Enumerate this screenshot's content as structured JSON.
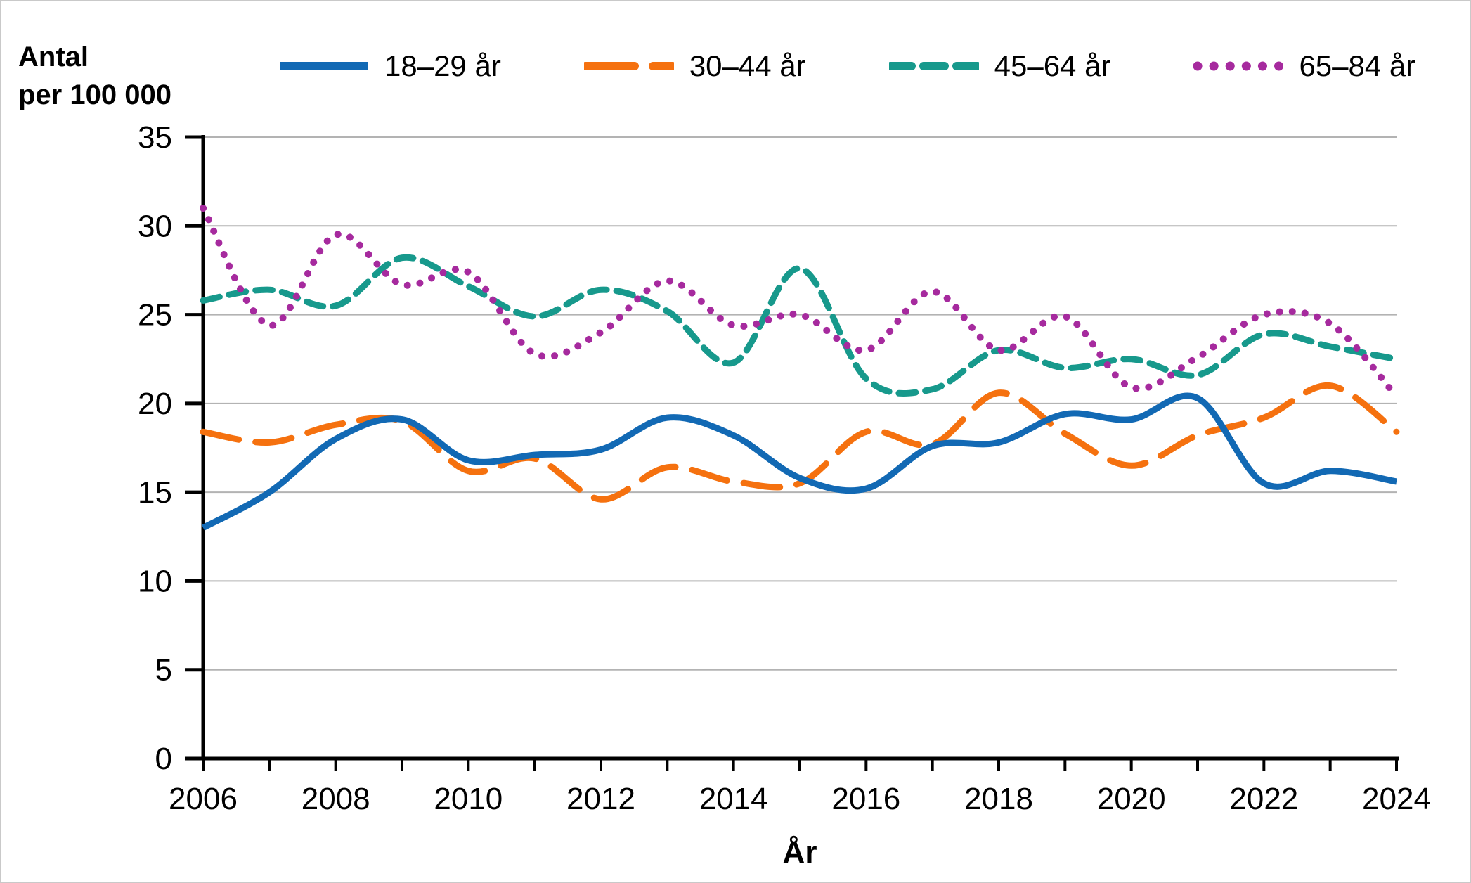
{
  "unit_label": {
    "line1": "Antal",
    "line2": "per 100 000"
  },
  "x_axis_title": "År",
  "chart_data": {
    "type": "line",
    "title": "",
    "ylabel": "Antal per 100 000",
    "xlabel": "År",
    "grid": true,
    "legend_position": "top",
    "ylim": [
      0,
      35
    ],
    "ytick_step": 5,
    "ytick_labels": [
      "0",
      "5",
      "10",
      "15",
      "20",
      "25",
      "30",
      "35"
    ],
    "x": [
      2006,
      2007,
      2008,
      2009,
      2010,
      2011,
      2012,
      2013,
      2014,
      2015,
      2016,
      2017,
      2018,
      2019,
      2020,
      2021,
      2022,
      2023,
      2024
    ],
    "xtick_labels": [
      "2006",
      "2008",
      "2010",
      "2012",
      "2014",
      "2016",
      "2018",
      "2020",
      "2022",
      "2024"
    ],
    "series": [
      {
        "name": "18–29 år",
        "color": "#1269b4",
        "style": "solid",
        "values": [
          13.0,
          15.0,
          18.0,
          19.1,
          16.8,
          17.1,
          17.4,
          19.2,
          18.2,
          15.8,
          15.2,
          17.6,
          17.8,
          19.4,
          19.1,
          20.3,
          15.5,
          16.2,
          15.6
        ]
      },
      {
        "name": "30–44 år",
        "color": "#f5710f",
        "style": "long-dash",
        "values": [
          18.4,
          17.8,
          18.8,
          19.0,
          16.2,
          16.9,
          14.6,
          16.4,
          15.6,
          15.5,
          18.4,
          17.7,
          20.6,
          18.3,
          16.5,
          18.2,
          19.2,
          21.0,
          18.4
        ]
      },
      {
        "name": "45–64 år",
        "color": "#17998c",
        "style": "dash",
        "values": [
          25.8,
          26.4,
          25.5,
          28.2,
          26.6,
          24.9,
          26.4,
          25.2,
          22.3,
          27.6,
          21.4,
          20.8,
          23.0,
          22.0,
          22.5,
          21.6,
          23.9,
          23.2,
          22.5
        ]
      },
      {
        "name": "65–84 år",
        "color": "#a62a9e",
        "style": "dot",
        "values": [
          31.0,
          24.4,
          29.5,
          26.7,
          27.4,
          22.8,
          24.0,
          26.9,
          24.4,
          25.0,
          23.0,
          26.3,
          23.0,
          24.9,
          20.9,
          22.6,
          25.0,
          24.5,
          20.4
        ]
      }
    ],
    "colors": {
      "axis": "#000000",
      "gridline": "#b3b3b3"
    }
  }
}
